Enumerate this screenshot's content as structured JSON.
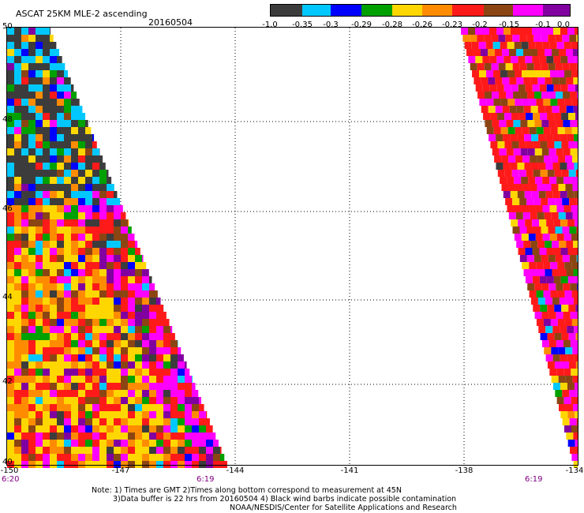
{
  "header": {
    "title": "ASCAT 25KM MLE-2 ascending",
    "date": "20160504"
  },
  "colorbar": {
    "colors": [
      "#3c3c3c",
      "#00c8ff",
      "#0000ff",
      "#00a000",
      "#ffd700",
      "#ff8c00",
      "#ff1a1a",
      "#8b4513",
      "#ff00ff",
      "#8000a0"
    ],
    "labels": [
      "-1.0",
      "-0.35",
      "-0.3",
      "-0.29",
      "-0.28",
      "-0.26",
      "-0.23",
      "-0.2",
      "-0.15",
      "-0.1",
      "0.0"
    ]
  },
  "map": {
    "lat_labels": [
      "50",
      "48",
      "46",
      "44",
      "42",
      "40"
    ],
    "lon_labels": [
      "-150",
      "-147",
      "-144",
      "-141",
      "-138",
      "-134"
    ],
    "time_labels": [
      "6:20",
      "6:19",
      "6:19"
    ]
  },
  "footer": {
    "note_line1": "Note: 1) Times are GMT 2)Times along bottom correspond to measurement at 45N",
    "note_line2": "3)Data buffer is 22 hrs from 20160504 4) Black wind barbs indicate possible contamination",
    "note_line3": "NOAA/NESDIS/Center for Satellite Applications and Research"
  }
}
